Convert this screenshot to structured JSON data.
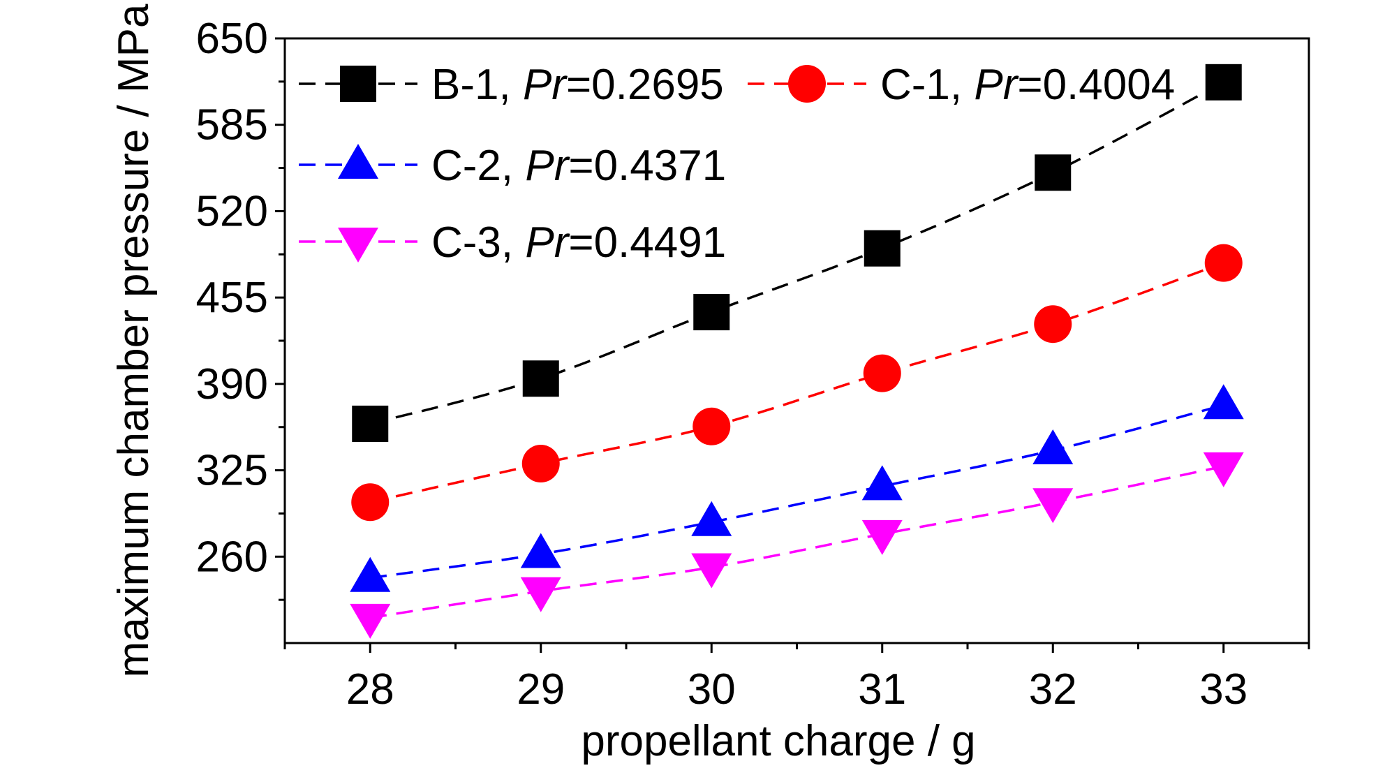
{
  "chart_data": {
    "type": "line",
    "title": "",
    "xlabel": "propellant charge / g",
    "ylabel": "maximum chamber pressure / MPa",
    "x": [
      28,
      29,
      30,
      31,
      32,
      33
    ],
    "xticks": [
      "28",
      "29",
      "30",
      "31",
      "32",
      "33"
    ],
    "yticks": [
      "260",
      "325",
      "390",
      "455",
      "520",
      "585",
      "650"
    ],
    "xlim": [
      27.5,
      33.5
    ],
    "ylim": [
      195,
      650
    ],
    "grid": false,
    "legend_position": "top-left",
    "series": [
      {
        "name": "B-1",
        "pr_label": "Pr",
        "pr_value": "=0.2695",
        "color": "#000000",
        "marker": "square",
        "values": [
          360,
          394,
          444,
          492,
          549,
          617
        ]
      },
      {
        "name": "C-1",
        "pr_label": "Pr",
        "pr_value": "=0.4004",
        "color": "#ff0000",
        "marker": "circle",
        "values": [
          301,
          330,
          358,
          398,
          435,
          481
        ]
      },
      {
        "name": "C-2",
        "pr_label": "Pr",
        "pr_value": "=0.4371",
        "color": "#0000ff",
        "marker": "triangle-up",
        "values": [
          244,
          262,
          286,
          313,
          340,
          374
        ]
      },
      {
        "name": "C-3",
        "pr_label": "Pr",
        "pr_value": "=0.4491",
        "color": "#ff00ff",
        "marker": "triangle-down",
        "values": [
          214,
          234,
          252,
          277,
          301,
          328
        ]
      }
    ]
  }
}
